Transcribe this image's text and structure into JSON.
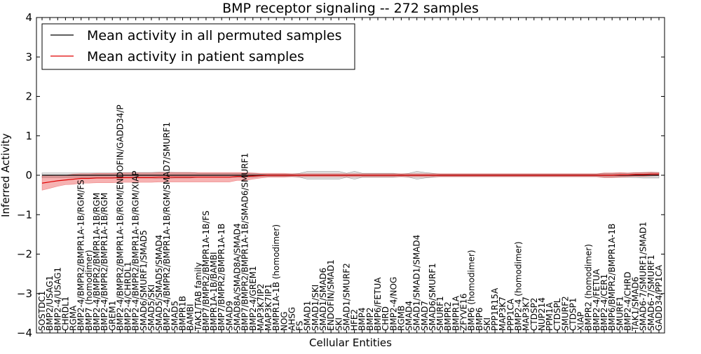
{
  "chart_data": {
    "type": "line",
    "title": "BMP receptor signaling -- 272 samples",
    "xlabel": "Cellular Entities",
    "ylabel": "Inferred Activity",
    "ylim": [
      -4,
      4
    ],
    "yticks": [
      4,
      3,
      2,
      1,
      0,
      -1,
      -2,
      -3,
      -4
    ],
    "ytick_labels": [
      "4",
      "3",
      "2",
      "1",
      "0",
      "−1",
      "−2",
      "−3",
      "−4"
    ],
    "legend_position": "top-left",
    "categories": [
      "SOSTDC1",
      "BMP2/USAG1",
      "BMP2-4/USAG1",
      "CHRDL1",
      "RGMA",
      "BMP2-4/BMPR2/BMPR1A-1B/RGM/FS",
      "BMP7 (homodimer)",
      "BMP2-4/BMPR2/BMPR1A-1B/RGM",
      "BMP2-4/BMPR2/BMPR1A-1B/RGM",
      "GREM1",
      "BMP2-4/BMPR2/BMPR1A-1B/RGM/ENDOFIN/GADD34/P",
      "BMP2-4/CHRDL1",
      "BMP2-4/BMPR2/BMPR1A-1B/RGM/XIAP",
      "SMAD6/SMURF1/SMAD5",
      "SMAD5/SKI",
      "SMAD5/SMAD5/SMAD4",
      "BMP2-4/BMPR2/BMPR1A-1B/RGM/SMAD7/SMURF1",
      "SMAD5",
      "BMPR1B",
      "BAMBI",
      "TAK1/TAB family",
      "BMP7/BMPR2/BMPR1A-1B/FS",
      "BMPR1A-1B/BAMBI",
      "BMP7/BMPR2/BMPR1A-1B",
      "SMAD9",
      "SMAD8A/SMAD8A/SMAD4",
      "BMP7/BMPR2/BMPR1A-1B/SMAD6/SMURF1",
      "BMP2-4/GREM1",
      "MAP3K7IP2",
      "MAP3K7IP1",
      "BMPR1A-1B (homodimer)",
      "NOG",
      "AHSG",
      "FS",
      "SMAD1",
      "SMAD1/SKI",
      "SMAD1/SMAD6",
      "ENDOFIN/SMAD1",
      "SKI",
      "SMAD1/SMURF2",
      "HFE2",
      "BMP4",
      "BMP2",
      "BMP6/FETUA",
      "CHRD",
      "BMP2-4/NOG",
      "RGMB",
      "SMAD4",
      "SMAD1/SMAD1/SMAD4",
      "SMAD7",
      "SMAD6/SMURF1",
      "SMURF1",
      "BMPR2",
      "BMPR1A",
      "ZFYVE16",
      "BMP6 (homodimer)",
      "BMP6",
      "SKI",
      "PPP1R15A",
      "MAP3K7",
      "PPP1CA",
      "BMP2-4 (homodimer)",
      "MAP3K7",
      "CTDSP2",
      "NUP214",
      "PPM1A",
      "CTDSPL",
      "SMURF2",
      "CTDSP1",
      "XIAP",
      "BMPR2 (homodimer)",
      "BMP2-4/FETUA",
      "BMP2-4/CER1",
      "BMP6/BMPR2/BMPR1A-1B",
      "SMURF1",
      "BMP2-4/CHRD",
      "TAK1/SMAD6",
      "SMAD6-7/SMURF1/SMAD1",
      "SMAD6-7/SMURF1",
      "GADD34/PP1CA"
    ],
    "series": [
      {
        "name": "Mean activity in all permuted samples",
        "color": "#000000",
        "values": [
          0.0,
          0.0,
          0.0,
          0.0,
          0.0,
          0.0,
          0.0,
          0.0,
          0.0,
          0.0,
          0.0,
          0.0,
          0.0,
          0.0,
          0.0,
          0.0,
          0.0,
          0.0,
          0.0,
          0.0,
          0.0,
          0.0,
          0.0,
          0.0,
          0.0,
          0.0,
          0.0,
          0.0,
          0.0,
          0.0,
          0.0,
          0.0,
          0.0,
          0.0,
          0.0,
          0.0,
          0.0,
          0.0,
          0.0,
          0.0,
          0.0,
          0.0,
          0.0,
          0.0,
          0.0,
          0.0,
          0.0,
          0.0,
          0.0,
          0.0,
          0.0,
          0.0,
          0.0,
          0.0,
          0.0,
          0.0,
          0.0,
          0.0,
          0.0,
          0.0,
          0.0,
          0.0,
          0.0,
          0.0,
          0.0,
          0.0,
          0.0,
          0.0,
          0.0,
          0.0,
          0.0,
          0.0,
          0.0,
          0.0,
          0.0,
          0.0,
          0.0,
          0.0,
          0.0,
          0.0
        ],
        "band": [
          0.06,
          0.06,
          0.06,
          0.06,
          0.06,
          0.06,
          0.06,
          0.06,
          0.06,
          0.06,
          0.07,
          0.07,
          0.07,
          0.07,
          0.07,
          0.08,
          0.08,
          0.07,
          0.07,
          0.07,
          0.05,
          0.05,
          0.05,
          0.05,
          0.05,
          0.05,
          0.05,
          0.05,
          0.03,
          0.03,
          0.03,
          0.03,
          0.03,
          0.05,
          0.1,
          0.1,
          0.1,
          0.1,
          0.1,
          0.05,
          0.1,
          0.05,
          0.05,
          0.05,
          0.05,
          0.05,
          0.03,
          0.05,
          0.1,
          0.07,
          0.05,
          0.03,
          0.03,
          0.03,
          0.03,
          0.03,
          0.03,
          0.03,
          0.03,
          0.03,
          0.03,
          0.03,
          0.03,
          0.03,
          0.03,
          0.03,
          0.03,
          0.03,
          0.03,
          0.03,
          0.03,
          0.03,
          0.05,
          0.05,
          0.05,
          0.05,
          0.06,
          0.07,
          0.07,
          0.07
        ]
      },
      {
        "name": "Mean activity in patient samples",
        "color": "#e00000",
        "values": [
          -0.2,
          -0.17,
          -0.14,
          -0.12,
          -0.1,
          -0.08,
          -0.08,
          -0.07,
          -0.07,
          -0.07,
          -0.06,
          -0.06,
          -0.06,
          -0.06,
          -0.06,
          -0.05,
          -0.05,
          -0.05,
          -0.05,
          -0.05,
          -0.05,
          -0.05,
          -0.05,
          -0.05,
          -0.05,
          -0.03,
          -0.03,
          -0.02,
          -0.01,
          0.0,
          0.0,
          0.0,
          0.0,
          0.0,
          0.0,
          0.0,
          0.0,
          0.0,
          0.0,
          0.0,
          0.0,
          0.0,
          0.0,
          0.0,
          0.0,
          0.0,
          0.0,
          0.0,
          0.0,
          0.0,
          0.0,
          0.0,
          0.0,
          0.0,
          0.0,
          0.0,
          0.0,
          0.0,
          0.0,
          0.0,
          0.0,
          0.0,
          0.0,
          0.0,
          0.0,
          0.0,
          0.0,
          0.0,
          0.0,
          0.0,
          0.0,
          0.0,
          0.0,
          0.0,
          0.01,
          0.01,
          0.02,
          0.02,
          0.03,
          0.03
        ],
        "band": [
          0.18,
          0.16,
          0.14,
          0.12,
          0.13,
          0.12,
          0.12,
          0.12,
          0.12,
          0.12,
          0.12,
          0.12,
          0.12,
          0.12,
          0.12,
          0.12,
          0.12,
          0.12,
          0.12,
          0.12,
          0.12,
          0.12,
          0.12,
          0.12,
          0.12,
          0.1,
          0.1,
          0.08,
          0.06,
          0.05,
          0.05,
          0.05,
          0.04,
          0.04,
          0.04,
          0.04,
          0.04,
          0.04,
          0.04,
          0.04,
          0.04,
          0.04,
          0.04,
          0.04,
          0.04,
          0.04,
          0.04,
          0.04,
          0.04,
          0.04,
          0.04,
          0.04,
          0.04,
          0.04,
          0.04,
          0.04,
          0.04,
          0.04,
          0.04,
          0.04,
          0.04,
          0.04,
          0.04,
          0.04,
          0.04,
          0.04,
          0.04,
          0.04,
          0.04,
          0.04,
          0.04,
          0.04,
          0.06,
          0.06,
          0.06,
          0.05,
          0.05,
          0.05,
          0.05,
          0.04
        ]
      }
    ]
  }
}
